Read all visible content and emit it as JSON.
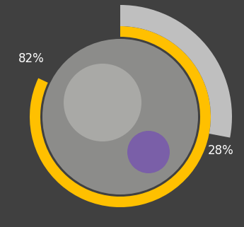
{
  "chart_data": {
    "type": "radial_bar",
    "values": [
      82,
      28
    ],
    "value_labels": [
      "82%",
      "28%"
    ],
    "colors": [
      "#ffc000",
      "#bfbfbf"
    ],
    "data_labels": true
  }
}
